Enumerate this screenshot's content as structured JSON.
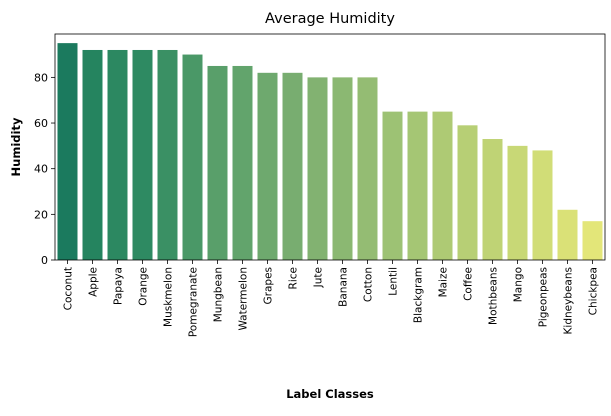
{
  "chart_data": {
    "type": "bar",
    "title": "Average Humidity",
    "xlabel": "Label Classes",
    "ylabel": "Humidity",
    "ylim": [
      0,
      99
    ],
    "yticks": [
      0,
      20,
      40,
      60,
      80
    ],
    "grid": false,
    "categories": [
      "Coconut",
      "Apple",
      "Papaya",
      "Orange",
      "Muskmelon",
      "Pomegranate",
      "Mungbean",
      "Watermelon",
      "Grapes",
      "Rice",
      "Jute",
      "Banana",
      "Cotton",
      "Lentil",
      "Blackgram",
      "Maize",
      "Coffee",
      "Mothbeans",
      "Mango",
      "Pigeonpeas",
      "Kidneybeans",
      "Chickpea"
    ],
    "values": [
      95,
      92,
      92,
      92,
      92,
      90,
      85,
      85,
      82,
      82,
      80,
      80,
      80,
      65,
      65,
      65,
      59,
      53,
      50,
      48,
      22,
      17
    ],
    "colors": [
      "#1b7a5e",
      "#25845f",
      "#2c8861",
      "#2e8a62",
      "#3a9064",
      "#4a9867",
      "#599f6a",
      "#62a46c",
      "#6ea96e",
      "#78ad70",
      "#82b271",
      "#8bb872",
      "#94bc73",
      "#9dc274",
      "#a5c674",
      "#aeca74",
      "#b7cf75",
      "#bfd375",
      "#c8d876",
      "#d1dd77",
      "#dae177",
      "#e3e679"
    ]
  }
}
